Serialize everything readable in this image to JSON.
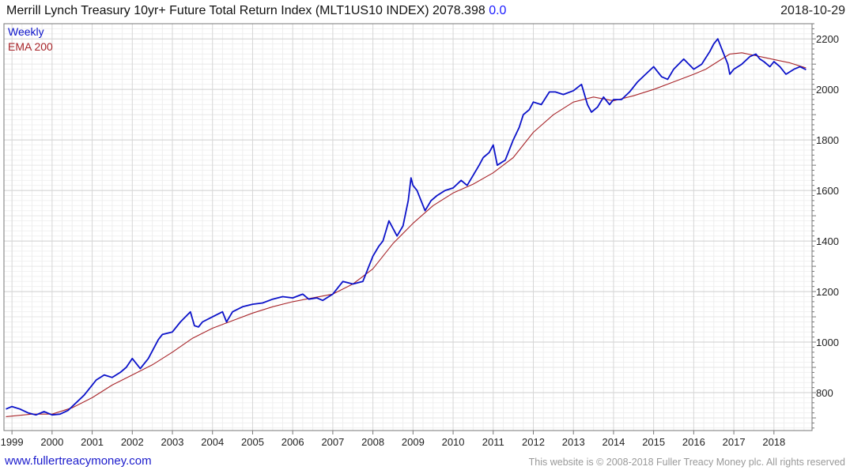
{
  "header": {
    "title": "Merrill Lynch Treasury 10yr+ Future Total Return Index (MLT1US10 INDEX) 2078.398",
    "change": "0.0",
    "date": "2018-10-29"
  },
  "footer": {
    "website": "www.fullertreacymoney.com",
    "copyright": "This website is © 2008-2018 Fuller Treacy Money plc. All rights reserved"
  },
  "colors": {
    "price_line": "#0b12c9",
    "ema_line": "#a8252a",
    "grid": "#dedede",
    "axis": "#777777",
    "change_text": "#1a1aff"
  },
  "chart_data": {
    "type": "line",
    "title": "Merrill Lynch Treasury 10yr+ Future Total Return Index (MLT1US10 INDEX)",
    "frequency": "Weekly",
    "xlabel": "",
    "ylabel": "",
    "xlim": [
      1998.8,
      2018.95
    ],
    "ylim": [
      650,
      2260
    ],
    "y_ticks": [
      800,
      1000,
      1200,
      1400,
      1600,
      1800,
      2000,
      2200
    ],
    "x_ticks": [
      "1999",
      "2000",
      "2001",
      "2002",
      "2003",
      "2004",
      "2005",
      "2006",
      "2007",
      "2008",
      "2009",
      "2010",
      "2011",
      "2012",
      "2013",
      "2014",
      "2015",
      "2016",
      "2017",
      "2018"
    ],
    "y_axis_position": "right",
    "grid": true,
    "legend_position": "top-left",
    "series": [
      {
        "name": "Weekly",
        "color": "#0b12c9",
        "x": [
          1998.85,
          1999.0,
          1999.2,
          1999.4,
          1999.6,
          1999.8,
          2000.0,
          2000.2,
          2000.4,
          2000.6,
          2000.8,
          2000.9,
          2001.0,
          2001.1,
          2001.3,
          2001.5,
          2001.7,
          2001.85,
          2002.0,
          2002.2,
          2002.4,
          2002.55,
          2002.65,
          2002.75,
          2003.0,
          2003.2,
          2003.45,
          2003.55,
          2003.65,
          2003.75,
          2004.0,
          2004.25,
          2004.35,
          2004.5,
          2004.75,
          2005.0,
          2005.25,
          2005.5,
          2005.75,
          2006.0,
          2006.25,
          2006.4,
          2006.6,
          2006.75,
          2007.0,
          2007.25,
          2007.5,
          2007.75,
          2008.0,
          2008.15,
          2008.25,
          2008.4,
          2008.5,
          2008.6,
          2008.75,
          2008.88,
          2008.95,
          2009.0,
          2009.1,
          2009.2,
          2009.3,
          2009.45,
          2009.6,
          2009.8,
          2010.0,
          2010.2,
          2010.35,
          2010.5,
          2010.65,
          2010.75,
          2010.9,
          2011.0,
          2011.1,
          2011.3,
          2011.5,
          2011.65,
          2011.75,
          2011.9,
          2012.0,
          2012.2,
          2012.4,
          2012.55,
          2012.75,
          2013.0,
          2013.2,
          2013.35,
          2013.45,
          2013.6,
          2013.75,
          2013.9,
          2014.0,
          2014.2,
          2014.4,
          2014.6,
          2014.8,
          2015.0,
          2015.1,
          2015.2,
          2015.35,
          2015.5,
          2015.75,
          2016.0,
          2016.2,
          2016.4,
          2016.5,
          2016.6,
          2016.75,
          2016.85,
          2016.9,
          2017.0,
          2017.2,
          2017.4,
          2017.55,
          2017.65,
          2017.75,
          2017.9,
          2018.0,
          2018.15,
          2018.3,
          2018.5,
          2018.65,
          2018.8
        ],
        "y": [
          735,
          745,
          735,
          720,
          712,
          725,
          712,
          715,
          730,
          760,
          790,
          810,
          830,
          850,
          870,
          860,
          880,
          900,
          935,
          895,
          935,
          980,
          1010,
          1030,
          1040,
          1080,
          1120,
          1065,
          1060,
          1080,
          1100,
          1120,
          1080,
          1120,
          1140,
          1150,
          1155,
          1170,
          1180,
          1175,
          1190,
          1170,
          1175,
          1165,
          1190,
          1240,
          1230,
          1240,
          1340,
          1380,
          1400,
          1480,
          1450,
          1420,
          1460,
          1560,
          1650,
          1620,
          1600,
          1560,
          1520,
          1560,
          1580,
          1600,
          1610,
          1640,
          1620,
          1660,
          1700,
          1730,
          1750,
          1780,
          1700,
          1720,
          1800,
          1850,
          1900,
          1920,
          1950,
          1940,
          1990,
          1990,
          1980,
          1995,
          2020,
          1940,
          1910,
          1930,
          1970,
          1940,
          1960,
          1960,
          1990,
          2030,
          2060,
          2090,
          2070,
          2050,
          2040,
          2080,
          2120,
          2080,
          2100,
          2150,
          2180,
          2200,
          2140,
          2100,
          2060,
          2080,
          2100,
          2130,
          2140,
          2120,
          2110,
          2090,
          2110,
          2090,
          2060,
          2080,
          2090,
          2078
        ]
      },
      {
        "name": "EMA 200",
        "color": "#a8252a",
        "x": [
          1998.85,
          1999.5,
          2000.0,
          2000.5,
          2001.0,
          2001.5,
          2002.0,
          2002.5,
          2003.0,
          2003.5,
          2004.0,
          2004.5,
          2005.0,
          2005.5,
          2006.0,
          2006.5,
          2007.0,
          2007.5,
          2008.0,
          2008.5,
          2009.0,
          2009.5,
          2010.0,
          2010.5,
          2011.0,
          2011.5,
          2012.0,
          2012.5,
          2013.0,
          2013.5,
          2014.0,
          2014.5,
          2015.0,
          2015.5,
          2016.0,
          2016.3,
          2016.6,
          2016.9,
          2017.2,
          2017.5,
          2017.8,
          2018.1,
          2018.4,
          2018.8
        ],
        "y": [
          705,
          715,
          715,
          740,
          780,
          830,
          870,
          910,
          960,
          1015,
          1055,
          1085,
          1115,
          1140,
          1160,
          1175,
          1190,
          1230,
          1290,
          1390,
          1470,
          1540,
          1590,
          1625,
          1670,
          1730,
          1830,
          1900,
          1950,
          1970,
          1955,
          1975,
          2000,
          2030,
          2060,
          2080,
          2110,
          2140,
          2145,
          2135,
          2125,
          2115,
          2105,
          2085
        ]
      }
    ]
  }
}
